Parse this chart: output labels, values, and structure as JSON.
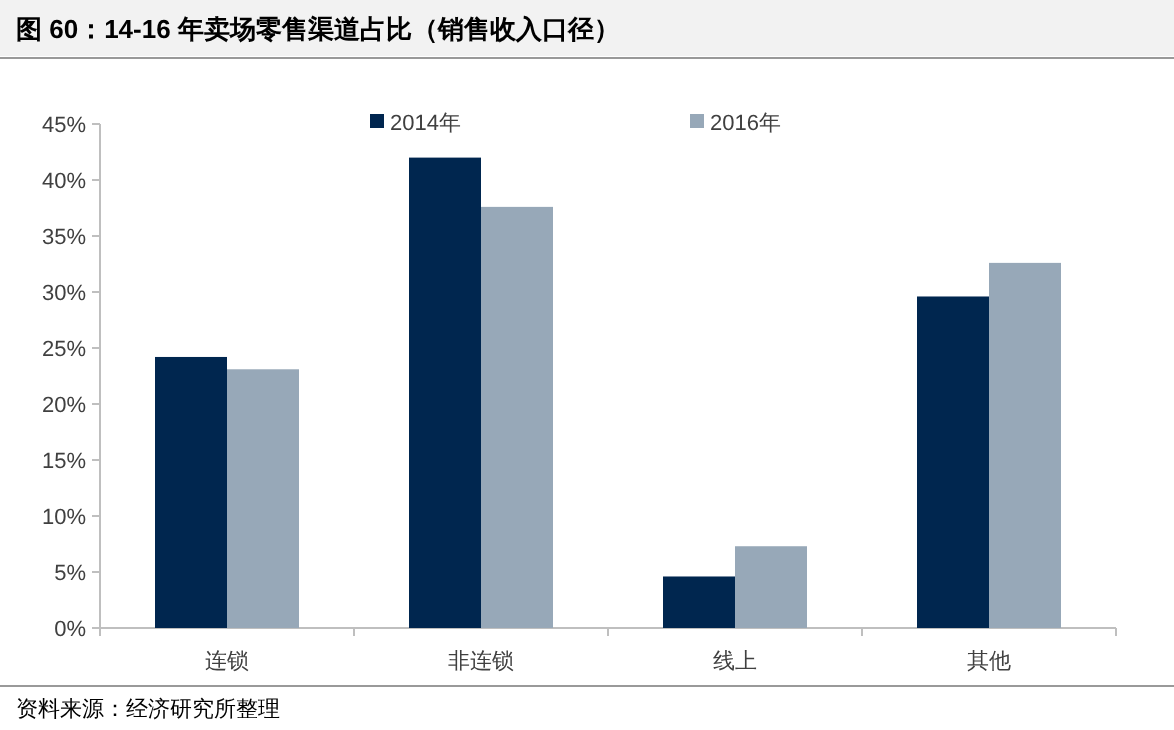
{
  "chart_data": {
    "type": "bar",
    "title": "图 60：14-16 年卖场零售渠道占比（销售收入口径）",
    "categories": [
      "连锁",
      "非连锁",
      "线上",
      "其他"
    ],
    "series": [
      {
        "name": "2014年",
        "color": "#00264f",
        "values": [
          24.2,
          42.0,
          4.6,
          29.6
        ]
      },
      {
        "name": "2016年",
        "color": "#97a8b8",
        "values": [
          23.1,
          37.6,
          7.3,
          32.6
        ]
      }
    ],
    "ylim": [
      0,
      45
    ],
    "yticks": [
      {
        "value": 0,
        "label": "0%"
      },
      {
        "value": 5,
        "label": "5%"
      },
      {
        "value": 10,
        "label": "10%"
      },
      {
        "value": 15,
        "label": "15%"
      },
      {
        "value": 20,
        "label": "20%"
      },
      {
        "value": 25,
        "label": "25%"
      },
      {
        "value": 30,
        "label": "30%"
      },
      {
        "value": 35,
        "label": "35%"
      },
      {
        "value": 40,
        "label": "40%"
      },
      {
        "value": 45,
        "label": "45%"
      }
    ],
    "grid": false,
    "legend": "top",
    "annotations": [
      "资料来源：经济研究所整理"
    ]
  }
}
